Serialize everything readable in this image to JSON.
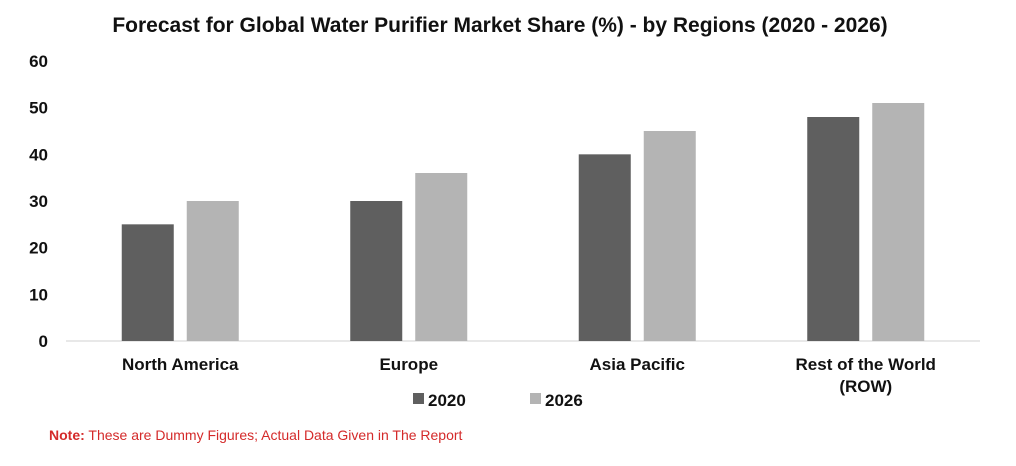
{
  "chart_data": {
    "type": "bar",
    "title": "Forecast for Global Water Purifier Market Share (%) - by Regions (2020 - 2026)",
    "categories": [
      [
        "North America"
      ],
      [
        "Europe"
      ],
      [
        "Asia Pacific"
      ],
      [
        "Rest of the World",
        "(ROW)"
      ]
    ],
    "series": [
      {
        "name": "2020",
        "values": [
          25,
          30,
          40,
          48
        ],
        "color": "#5f5f5f"
      },
      {
        "name": "2026",
        "values": [
          30,
          36,
          45,
          51
        ],
        "color": "#b4b4b4"
      }
    ],
    "ylim": [
      0,
      60
    ],
    "yticks": [
      0,
      10,
      20,
      30,
      40,
      50,
      60
    ],
    "xlabel": "",
    "ylabel": "",
    "grid": false,
    "legend_position": "bottom"
  },
  "note": {
    "label": "Note:",
    "text": " These are Dummy Figures; Actual Data Given in The Report"
  }
}
